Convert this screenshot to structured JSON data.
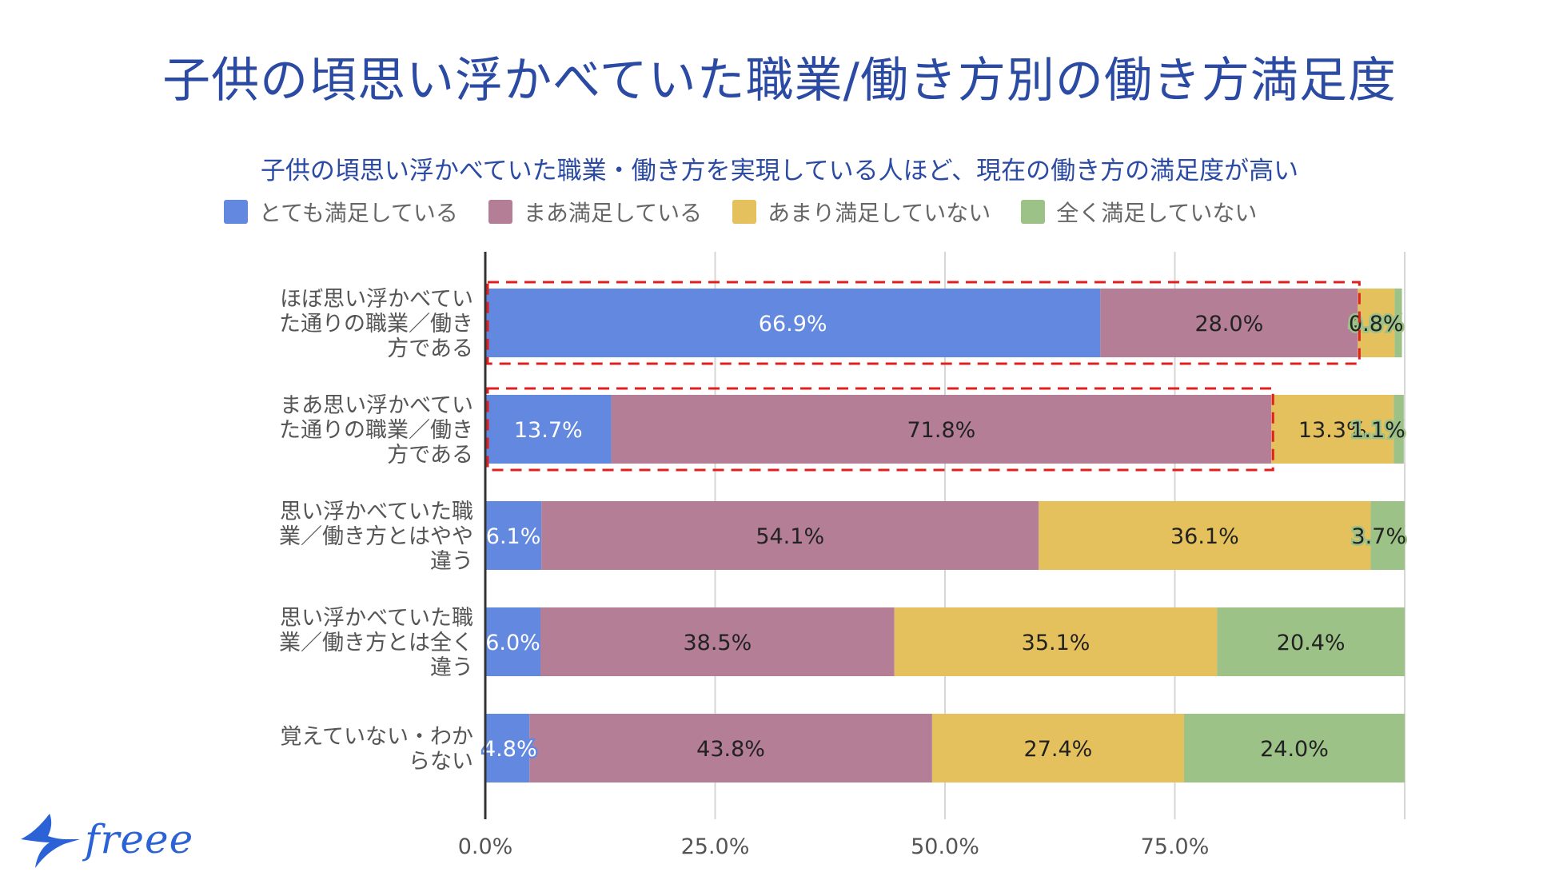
{
  "title": "子供の頃思い浮かべていた職業/働き方別の働き方満足度",
  "logo_text": "freee",
  "chart_data": {
    "type": "bar",
    "orientation": "horizontal",
    "stacked": true,
    "title": "子供の頃思い浮かべていた職業・働き方を実現している人ほど、現在の働き方の満足度が高い",
    "legend_position": "top",
    "categories": [
      "ほぼ思い浮かべていた通りの職業／働き方である",
      "まあ思い浮かべていた通りの職業／働き方である",
      "思い浮かべていた職業／働き方とはやや違う",
      "思い浮かべていた職業／働き方とは全く違う",
      "覚えていない・わからない"
    ],
    "category_lines": [
      [
        "ほぼ思い浮かべてい",
        "た通りの職業／働き",
        "方である"
      ],
      [
        "まあ思い浮かべてい",
        "た通りの職業／働き",
        "方である"
      ],
      [
        "思い浮かべていた職",
        "業／働き方とはやや",
        "違う"
      ],
      [
        "思い浮かべていた職",
        "業／働き方とは全く",
        "違う"
      ],
      [
        "覚えていない・わか",
        "らない"
      ]
    ],
    "series": [
      {
        "name": "とても満足している",
        "color": "#6388e0",
        "label_color": "#ffffff",
        "values": [
          66.9,
          13.7,
          6.1,
          6.0,
          4.8
        ],
        "labels": [
          "66.9%",
          "13.7%",
          "6.1%",
          "6.0%",
          "4.8%"
        ]
      },
      {
        "name": "まあ満足している",
        "color": "#b47e97",
        "label_color": "#222222",
        "values": [
          28.0,
          71.8,
          54.1,
          38.5,
          43.8
        ],
        "labels": [
          "28.0%",
          "71.8%",
          "54.1%",
          "38.5%",
          "43.8%"
        ]
      },
      {
        "name": "あまり満足していない",
        "color": "#e4c15c",
        "label_color": "#222222",
        "values": [
          4.0,
          13.3,
          36.1,
          35.1,
          27.4
        ],
        "labels": [
          "4.0%",
          "13.3%",
          "36.1%",
          "35.1%",
          "27.4%"
        ]
      },
      {
        "name": "全く満足していない",
        "color": "#9dc287",
        "label_color": "#222222",
        "values": [
          0.8,
          1.1,
          3.7,
          20.4,
          24.0
        ],
        "labels": [
          "0.8%",
          "1.1%",
          "3.7%",
          "20.4%",
          "24.0%"
        ]
      }
    ],
    "x_axis": {
      "min": 0,
      "max": 100,
      "ticks": [
        0,
        25,
        50,
        75,
        100
      ],
      "tick_labels": [
        "0.0%",
        "25.0%",
        "50.0%",
        "75.0%",
        ""
      ]
    },
    "highlight": {
      "color": "#e02020",
      "rows": [
        0,
        1
      ],
      "spans_series": [
        0,
        1
      ]
    }
  }
}
